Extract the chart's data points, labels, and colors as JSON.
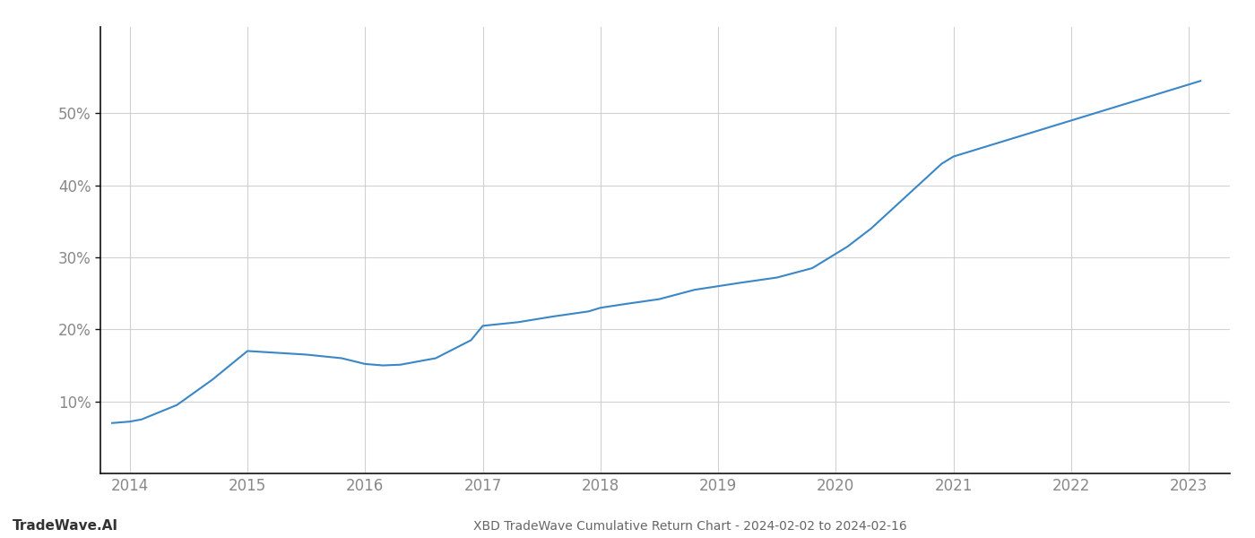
{
  "x_values": [
    2013.85,
    2014.0,
    2014.1,
    2014.4,
    2014.7,
    2015.0,
    2015.2,
    2015.5,
    2015.8,
    2016.0,
    2016.15,
    2016.3,
    2016.6,
    2016.9,
    2017.0,
    2017.3,
    2017.6,
    2017.9,
    2018.0,
    2018.2,
    2018.5,
    2018.8,
    2019.0,
    2019.2,
    2019.5,
    2019.8,
    2020.0,
    2020.05,
    2020.1,
    2020.3,
    2020.6,
    2020.9,
    2021.0,
    2021.1,
    2021.3,
    2021.5,
    2021.8,
    2022.0,
    2022.2,
    2022.5,
    2022.8,
    2023.0,
    2023.1
  ],
  "y_values": [
    7.0,
    7.2,
    7.5,
    9.5,
    13.0,
    17.0,
    16.8,
    16.5,
    16.0,
    15.2,
    15.0,
    15.1,
    16.0,
    18.5,
    20.5,
    21.0,
    21.8,
    22.5,
    23.0,
    23.5,
    24.2,
    25.5,
    26.0,
    26.5,
    27.2,
    28.5,
    30.5,
    31.0,
    31.5,
    34.0,
    38.5,
    43.0,
    44.0,
    44.5,
    45.5,
    46.5,
    48.0,
    49.0,
    50.0,
    51.5,
    53.0,
    54.0,
    54.5
  ],
  "line_color": "#3a87c8",
  "line_width": 1.5,
  "background_color": "#ffffff",
  "grid_color": "#cccccc",
  "title": "XBD TradeWave Cumulative Return Chart - 2024-02-02 to 2024-02-16",
  "watermark": "TradeWave.AI",
  "xlim": [
    2013.75,
    2023.35
  ],
  "ylim": [
    0,
    62
  ],
  "yticks": [
    10,
    20,
    30,
    40,
    50
  ],
  "xticks": [
    2014,
    2015,
    2016,
    2017,
    2018,
    2019,
    2020,
    2021,
    2022,
    2023
  ],
  "title_fontsize": 10,
  "tick_fontsize": 12,
  "watermark_fontsize": 11,
  "title_color": "#666666",
  "tick_color": "#888888",
  "watermark_color": "#333333",
  "spine_color": "#111111"
}
